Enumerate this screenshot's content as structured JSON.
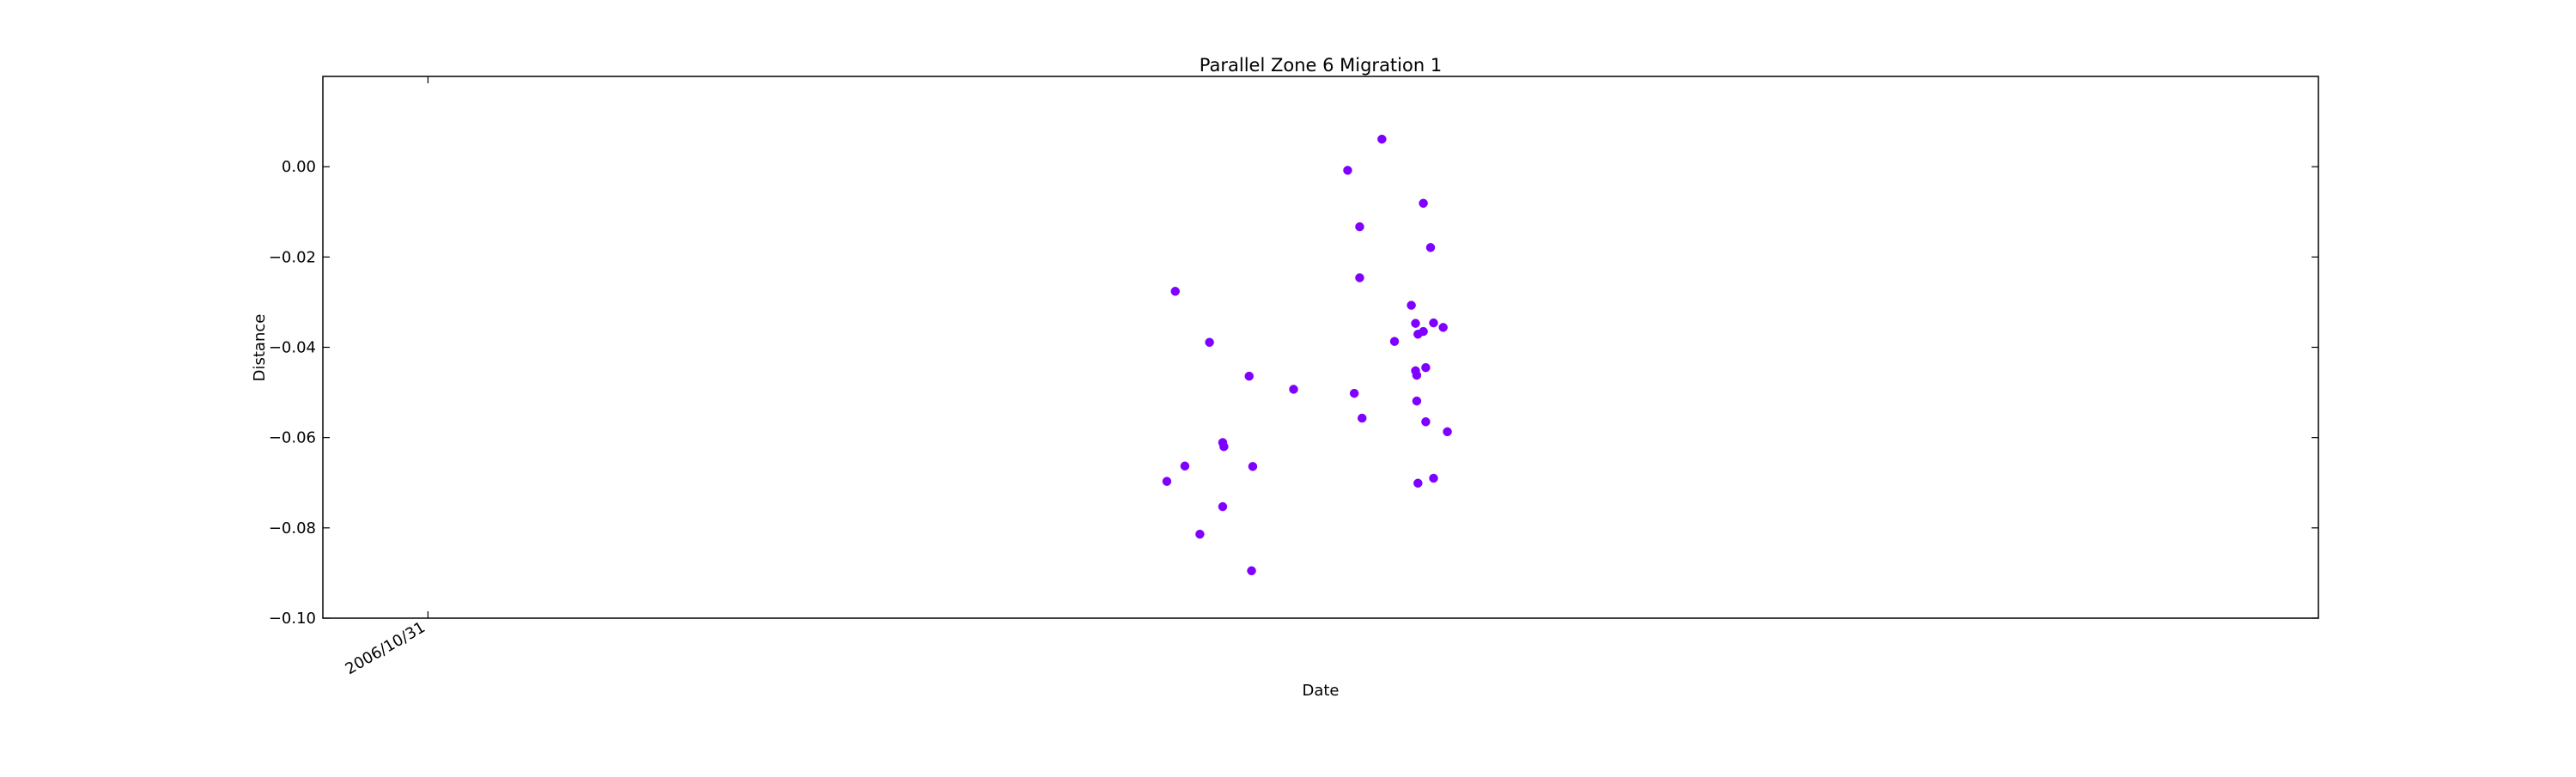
{
  "chart_data": {
    "type": "scatter",
    "title": "Parallel Zone 6 Migration 1",
    "xlabel": "Date",
    "ylabel": "Distance",
    "ylim": [
      -0.1,
      0.02
    ],
    "y_ticks": [
      {
        "value": 0.0,
        "label": "0.00"
      },
      {
        "value": -0.02,
        "label": "−0.02"
      },
      {
        "value": -0.04,
        "label": "−0.04"
      },
      {
        "value": -0.06,
        "label": "−0.06"
      },
      {
        "value": -0.08,
        "label": "−0.08"
      },
      {
        "value": -0.1,
        "label": "−0.10"
      }
    ],
    "xlim": [
      "2006-05-09",
      "2015-06-13"
    ],
    "x_ticks": [
      {
        "value": "2006-10-31",
        "label": "2006/10/31"
      }
    ],
    "grid": false,
    "marker_color": "#7f00ff",
    "points": [
      {
        "x": "2010-03-14",
        "y": -0.0697
      },
      {
        "x": "2010-03-28",
        "y": -0.0276
      },
      {
        "x": "2010-04-13",
        "y": -0.0663
      },
      {
        "x": "2010-05-08",
        "y": -0.0814
      },
      {
        "x": "2010-05-24",
        "y": -0.0389
      },
      {
        "x": "2010-06-15",
        "y": -0.0753
      },
      {
        "x": "2010-06-15",
        "y": -0.0611
      },
      {
        "x": "2010-06-17",
        "y": -0.062
      },
      {
        "x": "2010-07-29",
        "y": -0.0464
      },
      {
        "x": "2010-08-02",
        "y": -0.0895
      },
      {
        "x": "2010-08-04",
        "y": -0.0664
      },
      {
        "x": "2010-10-11",
        "y": -0.0493
      },
      {
        "x": "2011-01-09",
        "y": -0.0008
      },
      {
        "x": "2011-01-20",
        "y": -0.0502
      },
      {
        "x": "2011-01-29",
        "y": -0.0133
      },
      {
        "x": "2011-01-29",
        "y": -0.0246
      },
      {
        "x": "2011-02-02",
        "y": -0.0557
      },
      {
        "x": "2011-03-07",
        "y": 0.0061
      },
      {
        "x": "2011-03-28",
        "y": -0.0387
      },
      {
        "x": "2011-04-25",
        "y": -0.0307
      },
      {
        "x": "2011-05-02",
        "y": -0.0347
      },
      {
        "x": "2011-05-02",
        "y": -0.0452
      },
      {
        "x": "2011-05-04",
        "y": -0.0462
      },
      {
        "x": "2011-05-04",
        "y": -0.0519
      },
      {
        "x": "2011-05-06",
        "y": -0.0371
      },
      {
        "x": "2011-05-06",
        "y": -0.0701
      },
      {
        "x": "2011-05-15",
        "y": -0.0081
      },
      {
        "x": "2011-05-15",
        "y": -0.0365
      },
      {
        "x": "2011-05-19",
        "y": -0.0445
      },
      {
        "x": "2011-05-19",
        "y": -0.0565
      },
      {
        "x": "2011-05-27",
        "y": -0.0179
      },
      {
        "x": "2011-06-01",
        "y": -0.0346
      },
      {
        "x": "2011-06-01",
        "y": -0.069
      },
      {
        "x": "2011-06-17",
        "y": -0.0356
      },
      {
        "x": "2011-06-24",
        "y": -0.0587
      }
    ]
  }
}
